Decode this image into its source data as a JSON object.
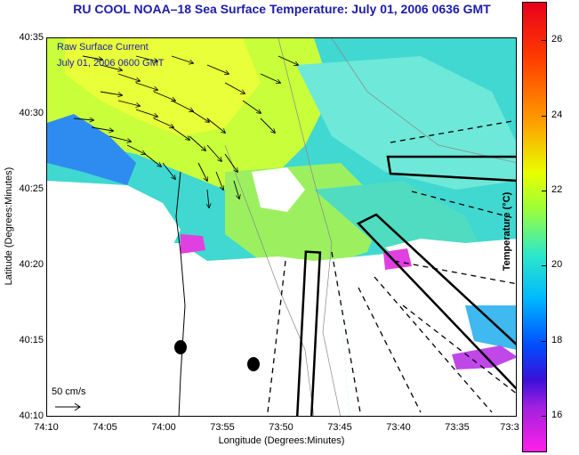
{
  "title": "RU COOL  NOAA–18  Sea Surface Temperature:  July 01, 2006 0636 GMT",
  "legend": {
    "line1": "Raw Surface Current",
    "line2": "July 01, 2006 0600 GMT"
  },
  "scale": {
    "label": "50 cm/s"
  },
  "axes": {
    "x_title": "Longitude (Degrees:Minutes)",
    "y_title": "Latitude (Degrees:Minutes)",
    "x_ticks": [
      "74:10",
      "74:05",
      "74:00",
      "73:55",
      "73:50",
      "73:45",
      "73:40",
      "73:35",
      "73:3"
    ],
    "y_ticks": [
      "40:35",
      "40:30",
      "40:25",
      "40:20",
      "40:15",
      "40:10"
    ]
  },
  "colorbar": {
    "title": "Temperature (°C)",
    "ticks": [
      "26",
      "24",
      "22",
      "20",
      "18",
      "16"
    ]
  },
  "colors": {
    "land": "#ffffff",
    "water_default": "#30d8c8",
    "warm_band": "#c8ff3a",
    "title": "#1c1ca8"
  },
  "markers": [
    {
      "name": "buoy-1"
    },
    {
      "name": "buoy-2"
    }
  ]
}
